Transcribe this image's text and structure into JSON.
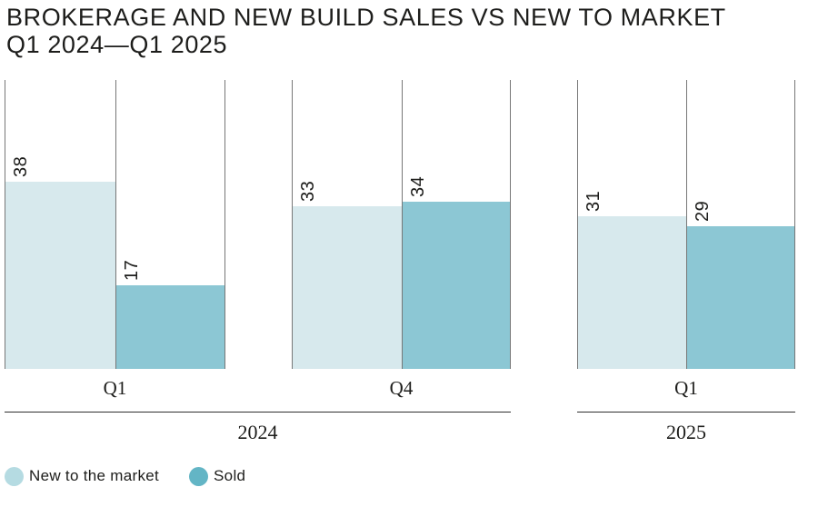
{
  "title": {
    "line1": "BROKERAGE AND NEW BUILD SALES VS NEW TO MARKET",
    "line2": "Q1 2024—Q1 2025"
  },
  "legend": {
    "items": [
      {
        "label": "New to the market",
        "color": "#b5dbe2"
      },
      {
        "label": "Sold",
        "color": "#63b5c5"
      }
    ]
  },
  "colors": {
    "bar_new_to_market": "#d7e9ed",
    "bar_sold": "#8cc7d4",
    "gridline": "#777777",
    "axis_line": "#2f2f2f",
    "text": "#1d1d1b"
  },
  "chart_data": {
    "type": "bar",
    "title": "BROKERAGE AND NEW BUILD SALES VS NEW TO MARKET",
    "subtitle": "Q1 2024—Q1 2025",
    "categories": [
      "Q1 2024",
      "Q4 2024",
      "Q1 2025"
    ],
    "series": [
      {
        "name": "New to the market",
        "values": [
          38,
          33,
          31
        ],
        "color": "#d7e9ed"
      },
      {
        "name": "Sold",
        "values": [
          17,
          34,
          29
        ],
        "color": "#8cc7d4"
      }
    ],
    "groups": [
      {
        "quarter": "Q1",
        "year": "2024",
        "values": [
          38,
          17
        ]
      },
      {
        "quarter": "Q4",
        "year": "2024",
        "values": [
          33,
          34
        ]
      },
      {
        "quarter": "Q1",
        "year": "2025",
        "values": [
          31,
          29
        ]
      }
    ],
    "years": [
      {
        "label": "2024",
        "group_indexes": [
          0,
          1
        ]
      },
      {
        "label": "2025",
        "group_indexes": [
          2
        ]
      }
    ],
    "value_labels_shown": true,
    "ylim": [
      0,
      59
    ],
    "grid": "vertical-lines",
    "legend_position": "bottom-left"
  }
}
